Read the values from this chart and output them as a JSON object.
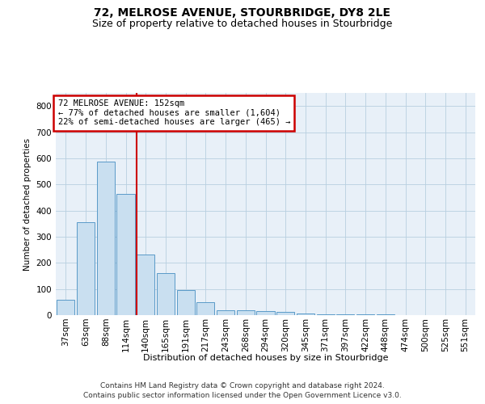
{
  "title": "72, MELROSE AVENUE, STOURBRIDGE, DY8 2LE",
  "subtitle": "Size of property relative to detached houses in Stourbridge",
  "xlabel": "Distribution of detached houses by size in Stourbridge",
  "ylabel": "Number of detached properties",
  "categories": [
    "37sqm",
    "63sqm",
    "88sqm",
    "114sqm",
    "140sqm",
    "165sqm",
    "191sqm",
    "217sqm",
    "243sqm",
    "268sqm",
    "294sqm",
    "320sqm",
    "345sqm",
    "371sqm",
    "397sqm",
    "422sqm",
    "448sqm",
    "474sqm",
    "500sqm",
    "525sqm",
    "551sqm"
  ],
  "values": [
    60,
    357,
    587,
    465,
    232,
    160,
    95,
    48,
    20,
    20,
    17,
    13,
    5,
    3,
    3,
    2,
    2,
    1,
    1,
    1,
    1
  ],
  "bar_color": "#c9dff0",
  "bar_edge_color": "#5a9ac8",
  "vline_color": "#cc0000",
  "vline_bar_index": 4,
  "annotation_title": "72 MELROSE AVENUE: 152sqm",
  "annotation_line1": "← 77% of detached houses are smaller (1,604)",
  "annotation_line2": "22% of semi-detached houses are larger (465) →",
  "annotation_box_color": "#ffffff",
  "annotation_box_edge": "#cc0000",
  "ylim": [
    0,
    850
  ],
  "yticks": [
    0,
    100,
    200,
    300,
    400,
    500,
    600,
    700,
    800
  ],
  "footer_line1": "Contains HM Land Registry data © Crown copyright and database right 2024.",
  "footer_line2": "Contains public sector information licensed under the Open Government Licence v3.0.",
  "plot_bg_color": "#e8f0f8",
  "title_fontsize": 10,
  "subtitle_fontsize": 9,
  "axis_fontsize": 7.5,
  "footer_fontsize": 6.5
}
